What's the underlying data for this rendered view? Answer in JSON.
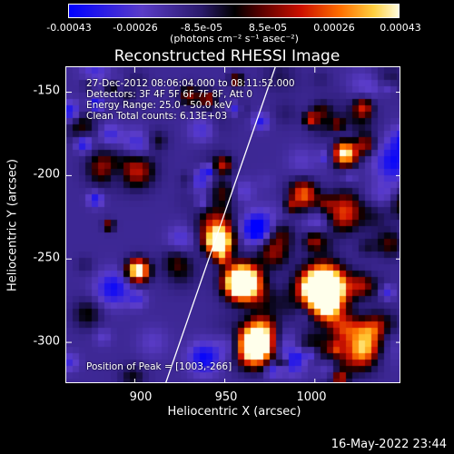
{
  "colorbar": {
    "ticks": [
      "-0.00043",
      "-0.00026",
      "-8.5e-05",
      "8.5e-05",
      "0.00026",
      "0.00043"
    ],
    "unit": "(photons cm⁻² s⁻¹ asec⁻²)"
  },
  "chart_data": {
    "type": "heatmap",
    "title": "Reconstructed RHESSI Image",
    "xlabel": "Heliocentric X (arcsec)",
    "ylabel": "Heliocentric Y (arcsec)",
    "xlim": [
      862,
      1048
    ],
    "ylim": [
      -325,
      -135
    ],
    "xticks": [
      900,
      950,
      1000
    ],
    "yticks": [
      -150,
      -200,
      -250,
      -300
    ],
    "color_range": [
      -0.00043,
      0.00043
    ],
    "annotations": [
      "27-Dec-2012 08:06:04.000 to 08:11:52.000",
      "Detectors: 3F 4F 5F 6F 7F 8F, Att 0",
      "Energy Range: 25.0 - 50.0 keV",
      "Clean     Total counts: 6.13E+03"
    ],
    "peak_label": "Position of Peak = [1003,-266]",
    "peak": [
      1003,
      -266
    ],
    "limb_line": [
      [
        917,
        -325
      ],
      [
        978,
        -135
      ]
    ]
  },
  "footer": {
    "timestamp": "16-May-2022 23:44"
  }
}
